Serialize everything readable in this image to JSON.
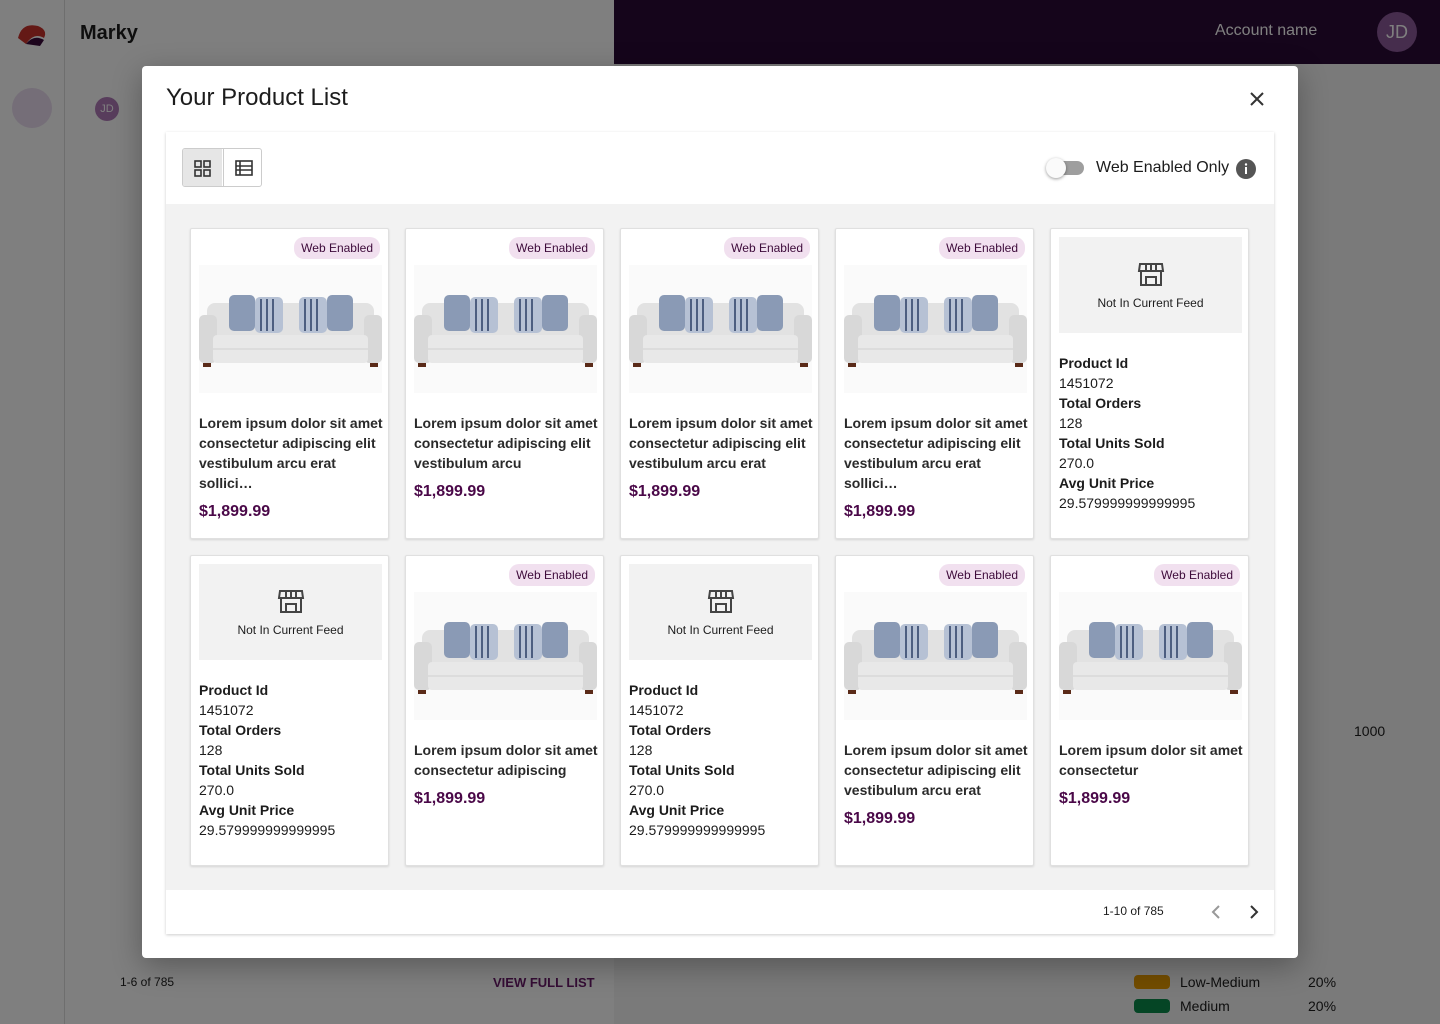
{
  "background": {
    "app_title": "Marky",
    "account_name": "Account name",
    "avatar": "JD",
    "small_avatar": "JD",
    "list_pagination": "1-6 of 785",
    "view_full_list": "VIEW FULL LIST",
    "axis_tick": "1000",
    "legend": [
      {
        "label": "Low-Medium",
        "percent": "20%"
      },
      {
        "label": "Medium",
        "percent": "20%"
      }
    ]
  },
  "modal": {
    "title": "Your Product List",
    "toggle_label": "Web Enabled Only",
    "pagination": "1-10 of 785",
    "products": [
      {
        "badge": "Web Enabled",
        "description": "Lorem ipsum dolor sit amet consectetur adipiscing elit vestibulum arcu erat sollici…",
        "price": "$1,899.99"
      },
      {
        "badge": "Web Enabled",
        "description": "Lorem ipsum dolor sit amet consectetur adipiscing elit vestibulum arcu",
        "price": "$1,899.99"
      },
      {
        "badge": "Web Enabled",
        "description": "Lorem ipsum dolor sit amet consectetur adipiscing elit vestibulum arcu erat",
        "price": "$1,899.99"
      },
      {
        "badge": "Web Enabled",
        "description": "Lorem ipsum dolor sit amet consectetur adipiscing elit vestibulum arcu erat sollici…",
        "price": "$1,899.99"
      },
      {
        "status": "Not In Current Feed",
        "fields": [
          {
            "label": "Product Id",
            "value": "1451072"
          },
          {
            "label": "Total Orders",
            "value": "128"
          },
          {
            "label": "Total Units Sold",
            "value": "270.0"
          },
          {
            "label": "Avg Unit Price",
            "value": "29.579999999999995"
          }
        ]
      },
      {
        "status": "Not In Current Feed",
        "fields": [
          {
            "label": "Product Id",
            "value": "1451072"
          },
          {
            "label": "Total Orders",
            "value": "128"
          },
          {
            "label": "Total Units Sold",
            "value": "270.0"
          },
          {
            "label": "Avg Unit Price",
            "value": "29.579999999999995"
          }
        ]
      },
      {
        "badge": "Web Enabled",
        "description": "Lorem ipsum dolor sit amet consectetur adipiscing",
        "price": "$1,899.99"
      },
      {
        "status": "Not In Current Feed",
        "fields": [
          {
            "label": "Product Id",
            "value": "1451072"
          },
          {
            "label": "Total Orders",
            "value": "128"
          },
          {
            "label": "Total Units Sold",
            "value": "270.0"
          },
          {
            "label": "Avg Unit Price",
            "value": "29.579999999999995"
          }
        ]
      },
      {
        "badge": "Web Enabled",
        "description": "Lorem ipsum dolor sit amet consectetur adipiscing elit vestibulum arcu erat",
        "price": "$1,899.99"
      },
      {
        "badge": "Web Enabled",
        "description": "Lorem ipsum dolor sit amet consectetur",
        "price": "$1,899.99"
      }
    ]
  }
}
